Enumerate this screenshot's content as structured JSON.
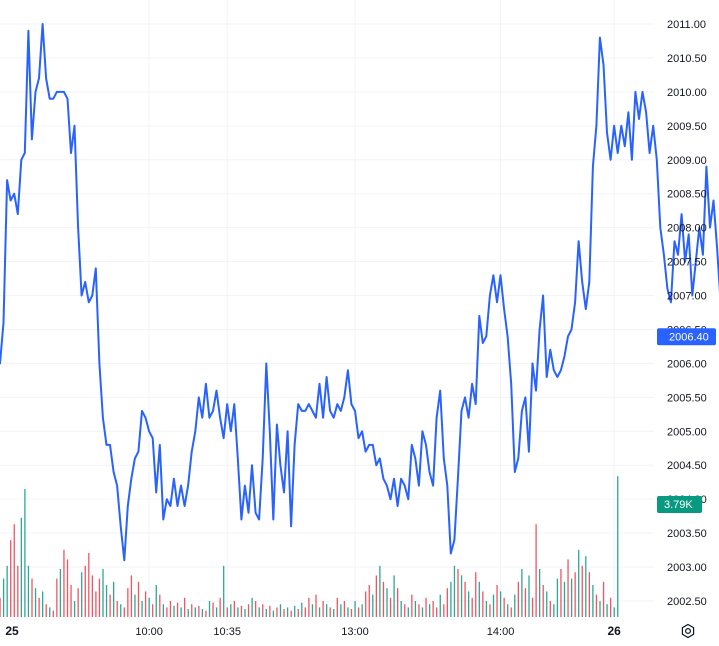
{
  "chart_data": {
    "type": "line",
    "title": "",
    "xlabel": "",
    "ylabel": "",
    "ylim": [
      2002.3,
      2011.2
    ],
    "y_ticks": [
      "2011.00",
      "2010.50",
      "2010.00",
      "2009.50",
      "2009.00",
      "2008.50",
      "2008.00",
      "2007.50",
      "2007.00",
      "2006.50",
      "2006.00",
      "2005.50",
      "2005.00",
      "2004.50",
      "2004.00",
      "2003.50",
      "2003.00",
      "2002.50"
    ],
    "x_ticks": [
      {
        "label": "25",
        "bold": true,
        "bar": 0
      },
      {
        "label": "10:00",
        "bold": false,
        "bar": 42
      },
      {
        "label": "10:35",
        "bold": false,
        "bar": 64
      },
      {
        "label": "13:00",
        "bold": false,
        "bar": 100
      },
      {
        "label": "14:00",
        "bold": false,
        "bar": 141
      },
      {
        "label": "26",
        "bold": true,
        "bar": 173
      }
    ],
    "series": [
      {
        "color": "#2962ff",
        "values": [
          2006.0,
          2006.6,
          2008.7,
          2008.4,
          2008.5,
          2008.2,
          2009.0,
          2009.1,
          2010.9,
          2009.3,
          2010.0,
          2010.2,
          2011.0,
          2010.2,
          2009.9,
          2009.9,
          2010.0,
          2010.0,
          2010.0,
          2009.9,
          2009.1,
          2009.5,
          2008.0,
          2007.0,
          2007.2,
          2006.9,
          2007.0,
          2007.4,
          2006.0,
          2005.2,
          2004.8,
          2004.8,
          2004.4,
          2004.2,
          2003.6,
          2003.1,
          2003.9,
          2004.3,
          2004.6,
          2004.7,
          2005.3,
          2005.2,
          2005.0,
          2004.9,
          2004.1,
          2004.8,
          2003.7,
          2004.0,
          2003.9,
          2004.3,
          2003.9,
          2004.2,
          2003.9,
          2004.2,
          2004.7,
          2005.0,
          2005.5,
          2005.2,
          2005.7,
          2005.2,
          2005.3,
          2005.6,
          2005.2,
          2004.9,
          2005.4,
          2005.0,
          2005.4,
          2004.6,
          2003.7,
          2004.2,
          2003.8,
          2004.5,
          2003.8,
          2003.7,
          2004.6,
          2006.0,
          2005.0,
          2003.7,
          2005.1,
          2004.5,
          2004.1,
          2005.0,
          2003.6,
          2004.8,
          2005.4,
          2005.3,
          2005.3,
          2005.4,
          2005.3,
          2005.2,
          2005.7,
          2005.2,
          2005.8,
          2005.3,
          2005.2,
          2005.4,
          2005.3,
          2005.5,
          2005.9,
          2005.4,
          2005.3,
          2004.9,
          2005.0,
          2004.7,
          2004.8,
          2004.8,
          2004.5,
          2004.6,
          2004.3,
          2004.2,
          2004.0,
          2004.3,
          2003.9,
          2004.3,
          2004.2,
          2004.0,
          2004.8,
          2004.6,
          2004.2,
          2005.0,
          2004.8,
          2004.4,
          2004.2,
          2005.2,
          2005.6,
          2004.6,
          2004.2,
          2003.2,
          2003.4,
          2004.3,
          2005.3,
          2005.5,
          2005.2,
          2005.7,
          2005.4,
          2006.7,
          2006.3,
          2006.4,
          2007.0,
          2007.3,
          2006.9,
          2007.3,
          2006.8,
          2006.4,
          2005.7,
          2004.4,
          2004.6,
          2005.3,
          2005.5,
          2004.7,
          2006.0,
          2005.6,
          2006.5,
          2007.0,
          2005.8,
          2006.2,
          2005.9,
          2005.8,
          2005.9,
          2006.1,
          2006.4,
          2006.5,
          2006.9,
          2007.8,
          2007.2,
          2006.8,
          2007.2,
          2008.9,
          2009.5,
          2010.8,
          2010.4,
          2009.4,
          2009.0,
          2009.5,
          2009.1,
          2009.5,
          2009.2,
          2009.7,
          2009.0,
          2010.0,
          2009.6,
          2010.0,
          2009.7,
          2009.1,
          2009.5,
          2009.0,
          2008.0,
          2007.6,
          2007.1,
          2006.9,
          2007.8,
          2007.6,
          2008.2,
          2007.5,
          2007.9,
          2007.0,
          2007.5,
          2008.0,
          2007.6,
          2008.9,
          2008.0,
          2008.4,
          2007.7,
          2006.9,
          2008.2,
          2007.2,
          2007.9,
          2007.4,
          2007.7,
          2007.4,
          2008.0,
          2008.0,
          2007.3,
          2005.4,
          2005.2,
          2005.0,
          2005.3,
          2005.9,
          2005.2,
          2005.0,
          2004.8,
          2003.6,
          2004.0,
          2003.7,
          2004.6,
          2006.0,
          2006.5,
          2007.6,
          2007.0,
          2007.5,
          2007.2,
          2008.1,
          2007.3,
          2007.4,
          2006.5,
          2006.6,
          2006.4,
          2006.4
        ]
      }
    ],
    "volume": [
      {
        "v": 0.12,
        "c": "r"
      },
      {
        "v": 0.24,
        "c": "g"
      },
      {
        "v": 0.32,
        "c": "g"
      },
      {
        "v": 0.48,
        "c": "r"
      },
      {
        "v": 0.58,
        "c": "r"
      },
      {
        "v": 0.32,
        "c": "r"
      },
      {
        "v": 0.62,
        "c": "g"
      },
      {
        "v": 0.8,
        "c": "g"
      },
      {
        "v": 0.32,
        "c": "g"
      },
      {
        "v": 0.24,
        "c": "r"
      },
      {
        "v": 0.18,
        "c": "g"
      },
      {
        "v": 0.12,
        "c": "r"
      },
      {
        "v": 0.16,
        "c": "g"
      },
      {
        "v": 0.08,
        "c": "r"
      },
      {
        "v": 0.06,
        "c": "g"
      },
      {
        "v": 0.04,
        "c": "r"
      },
      {
        "v": 0.24,
        "c": "r"
      },
      {
        "v": 0.3,
        "c": "g"
      },
      {
        "v": 0.42,
        "c": "r"
      },
      {
        "v": 0.36,
        "c": "r"
      },
      {
        "v": 0.2,
        "c": "r"
      },
      {
        "v": 0.1,
        "c": "g"
      },
      {
        "v": 0.18,
        "c": "r"
      },
      {
        "v": 0.28,
        "c": "g"
      },
      {
        "v": 0.32,
        "c": "r"
      },
      {
        "v": 0.4,
        "c": "r"
      },
      {
        "v": 0.26,
        "c": "r"
      },
      {
        "v": 0.16,
        "c": "r"
      },
      {
        "v": 0.24,
        "c": "r"
      },
      {
        "v": 0.3,
        "c": "g"
      },
      {
        "v": 0.2,
        "c": "g"
      },
      {
        "v": 0.14,
        "c": "r"
      },
      {
        "v": 0.22,
        "c": "g"
      },
      {
        "v": 0.1,
        "c": "r"
      },
      {
        "v": 0.08,
        "c": "g"
      },
      {
        "v": 0.06,
        "c": "r"
      },
      {
        "v": 0.18,
        "c": "r"
      },
      {
        "v": 0.26,
        "c": "r"
      },
      {
        "v": 0.14,
        "c": "g"
      },
      {
        "v": 0.22,
        "c": "r"
      },
      {
        "v": 0.1,
        "c": "g"
      },
      {
        "v": 0.16,
        "c": "r"
      },
      {
        "v": 0.12,
        "c": "g"
      },
      {
        "v": 0.08,
        "c": "r"
      },
      {
        "v": 0.2,
        "c": "g"
      },
      {
        "v": 0.14,
        "c": "r"
      },
      {
        "v": 0.08,
        "c": "g"
      },
      {
        "v": 0.06,
        "c": "r"
      },
      {
        "v": 0.1,
        "c": "r"
      },
      {
        "v": 0.07,
        "c": "g"
      },
      {
        "v": 0.09,
        "c": "r"
      },
      {
        "v": 0.06,
        "c": "g"
      },
      {
        "v": 0.12,
        "c": "r"
      },
      {
        "v": 0.05,
        "c": "g"
      },
      {
        "v": 0.08,
        "c": "r"
      },
      {
        "v": 0.06,
        "c": "g"
      },
      {
        "v": 0.07,
        "c": "r"
      },
      {
        "v": 0.05,
        "c": "g"
      },
      {
        "v": 0.04,
        "c": "r"
      },
      {
        "v": 0.1,
        "c": "g"
      },
      {
        "v": 0.09,
        "c": "r"
      },
      {
        "v": 0.06,
        "c": "g"
      },
      {
        "v": 0.12,
        "c": "r"
      },
      {
        "v": 0.32,
        "c": "g"
      },
      {
        "v": 0.06,
        "c": "r"
      },
      {
        "v": 0.08,
        "c": "g"
      },
      {
        "v": 0.1,
        "c": "r"
      },
      {
        "v": 0.06,
        "c": "g"
      },
      {
        "v": 0.07,
        "c": "r"
      },
      {
        "v": 0.05,
        "c": "g"
      },
      {
        "v": 0.08,
        "c": "r"
      },
      {
        "v": 0.12,
        "c": "g"
      },
      {
        "v": 0.1,
        "c": "r"
      },
      {
        "v": 0.06,
        "c": "g"
      },
      {
        "v": 0.08,
        "c": "r"
      },
      {
        "v": 0.05,
        "c": "g"
      },
      {
        "v": 0.07,
        "c": "r"
      },
      {
        "v": 0.04,
        "c": "g"
      },
      {
        "v": 0.06,
        "c": "r"
      },
      {
        "v": 0.08,
        "c": "g"
      },
      {
        "v": 0.05,
        "c": "r"
      },
      {
        "v": 0.06,
        "c": "g"
      },
      {
        "v": 0.04,
        "c": "r"
      },
      {
        "v": 0.07,
        "c": "g"
      },
      {
        "v": 0.05,
        "c": "r"
      },
      {
        "v": 0.09,
        "c": "g"
      },
      {
        "v": 0.06,
        "c": "r"
      },
      {
        "v": 0.12,
        "c": "r"
      },
      {
        "v": 0.08,
        "c": "g"
      },
      {
        "v": 0.14,
        "c": "r"
      },
      {
        "v": 0.06,
        "c": "g"
      },
      {
        "v": 0.1,
        "c": "r"
      },
      {
        "v": 0.08,
        "c": "g"
      },
      {
        "v": 0.06,
        "c": "r"
      },
      {
        "v": 0.05,
        "c": "g"
      },
      {
        "v": 0.12,
        "c": "r"
      },
      {
        "v": 0.08,
        "c": "g"
      },
      {
        "v": 0.1,
        "c": "r"
      },
      {
        "v": 0.06,
        "c": "g"
      },
      {
        "v": 0.05,
        "c": "r"
      },
      {
        "v": 0.1,
        "c": "g"
      },
      {
        "v": 0.06,
        "c": "r"
      },
      {
        "v": 0.08,
        "c": "g"
      },
      {
        "v": 0.16,
        "c": "r"
      },
      {
        "v": 0.2,
        "c": "r"
      },
      {
        "v": 0.14,
        "c": "g"
      },
      {
        "v": 0.26,
        "c": "r"
      },
      {
        "v": 0.32,
        "c": "g"
      },
      {
        "v": 0.22,
        "c": "r"
      },
      {
        "v": 0.18,
        "c": "g"
      },
      {
        "v": 0.12,
        "c": "r"
      },
      {
        "v": 0.26,
        "c": "g"
      },
      {
        "v": 0.18,
        "c": "r"
      },
      {
        "v": 0.1,
        "c": "g"
      },
      {
        "v": 0.08,
        "c": "r"
      },
      {
        "v": 0.06,
        "c": "g"
      },
      {
        "v": 0.14,
        "c": "r"
      },
      {
        "v": 0.1,
        "c": "g"
      },
      {
        "v": 0.08,
        "c": "r"
      },
      {
        "v": 0.06,
        "c": "g"
      },
      {
        "v": 0.12,
        "c": "r"
      },
      {
        "v": 0.08,
        "c": "g"
      },
      {
        "v": 0.1,
        "c": "r"
      },
      {
        "v": 0.06,
        "c": "r"
      },
      {
        "v": 0.14,
        "c": "g"
      },
      {
        "v": 0.08,
        "c": "r"
      },
      {
        "v": 0.18,
        "c": "r"
      },
      {
        "v": 0.22,
        "c": "g"
      },
      {
        "v": 0.32,
        "c": "g"
      },
      {
        "v": 0.3,
        "c": "r"
      },
      {
        "v": 0.26,
        "c": "g"
      },
      {
        "v": 0.22,
        "c": "r"
      },
      {
        "v": 0.16,
        "c": "g"
      },
      {
        "v": 0.12,
        "c": "r"
      },
      {
        "v": 0.28,
        "c": "r"
      },
      {
        "v": 0.22,
        "c": "g"
      },
      {
        "v": 0.16,
        "c": "r"
      },
      {
        "v": 0.1,
        "c": "g"
      },
      {
        "v": 0.08,
        "c": "r"
      },
      {
        "v": 0.14,
        "c": "g"
      },
      {
        "v": 0.2,
        "c": "r"
      },
      {
        "v": 0.16,
        "c": "g"
      },
      {
        "v": 0.12,
        "c": "r"
      },
      {
        "v": 0.08,
        "c": "g"
      },
      {
        "v": 0.06,
        "c": "r"
      },
      {
        "v": 0.14,
        "c": "g"
      },
      {
        "v": 0.22,
        "c": "r"
      },
      {
        "v": 0.3,
        "c": "g"
      },
      {
        "v": 0.18,
        "c": "r"
      },
      {
        "v": 0.26,
        "c": "g"
      },
      {
        "v": 0.12,
        "c": "r"
      },
      {
        "v": 0.58,
        "c": "r"
      },
      {
        "v": 0.3,
        "c": "g"
      },
      {
        "v": 0.2,
        "c": "r"
      },
      {
        "v": 0.16,
        "c": "g"
      },
      {
        "v": 0.1,
        "c": "r"
      },
      {
        "v": 0.08,
        "c": "g"
      },
      {
        "v": 0.24,
        "c": "g"
      },
      {
        "v": 0.3,
        "c": "r"
      },
      {
        "v": 0.22,
        "c": "g"
      },
      {
        "v": 0.36,
        "c": "r"
      },
      {
        "v": 0.24,
        "c": "g"
      },
      {
        "v": 0.28,
        "c": "r"
      },
      {
        "v": 0.42,
        "c": "g"
      },
      {
        "v": 0.32,
        "c": "r"
      },
      {
        "v": 0.38,
        "c": "g"
      },
      {
        "v": 0.28,
        "c": "r"
      },
      {
        "v": 0.2,
        "c": "g"
      },
      {
        "v": 0.14,
        "c": "r"
      },
      {
        "v": 0.1,
        "c": "g"
      },
      {
        "v": 0.22,
        "c": "r"
      },
      {
        "v": 0.08,
        "c": "g"
      },
      {
        "v": 0.12,
        "c": "r"
      },
      {
        "v": 0.06,
        "c": "g"
      },
      {
        "v": 0.88,
        "c": "g"
      }
    ],
    "last_price_badge": {
      "label": "2006.40",
      "value": 2006.4,
      "color": "#2962ff"
    },
    "volume_badge": {
      "label": "3.79K",
      "color": "#089981"
    },
    "colors": {
      "line": "#2962ff",
      "volume_up": "#089981",
      "volume_down": "#f23645",
      "grid": "#f0f3fa",
      "text": "#131722"
    }
  },
  "settings_icon": "settings-gear-icon"
}
